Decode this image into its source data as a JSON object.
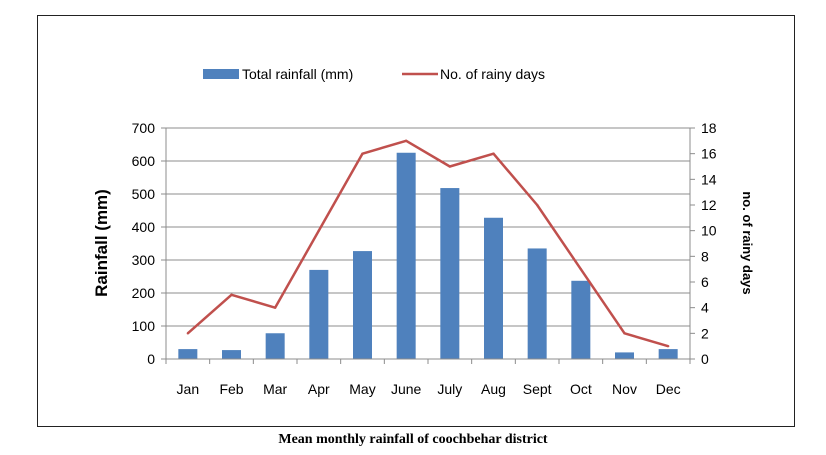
{
  "caption": "Mean monthly rainfall of coochbehar district",
  "chart_data": {
    "type": "bar",
    "categories": [
      "Jan",
      "Feb",
      "Mar",
      "Apr",
      "May",
      "June",
      "July",
      "Aug",
      "Sept",
      "Oct",
      "Nov",
      "Dec"
    ],
    "series": [
      {
        "name": "Total rainfall (mm)",
        "type": "bar",
        "axis": "left",
        "color": "#4f81bd",
        "values": [
          30,
          27,
          78,
          270,
          327,
          625,
          518,
          428,
          335,
          237,
          20,
          30
        ]
      },
      {
        "name": "No. of rainy days",
        "type": "line",
        "axis": "right",
        "color": "#c0504d",
        "values": [
          2,
          5,
          4,
          10,
          16,
          17,
          15,
          16,
          12,
          7,
          2,
          1
        ]
      }
    ],
    "ylabel": "Rainfall (mm)",
    "y2label": "no. of rainy days",
    "ylim": [
      0,
      700
    ],
    "y2lim": [
      0,
      18
    ],
    "yticks": [
      "0",
      "100",
      "200",
      "300",
      "400",
      "500",
      "600",
      "700"
    ],
    "y2ticks": [
      "0",
      "2",
      "4",
      "6",
      "8",
      "10",
      "12",
      "14",
      "16",
      "18"
    ],
    "grid": true,
    "legend_position": "top"
  }
}
